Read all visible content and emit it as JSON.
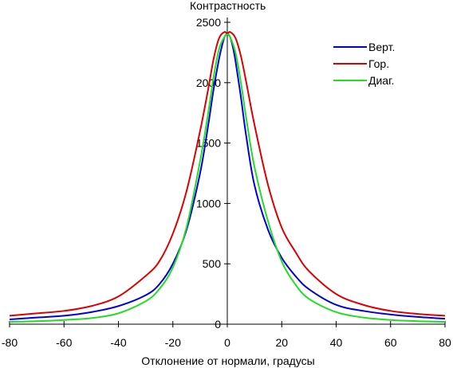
{
  "chart_data": {
    "type": "line",
    "ylabel": "Контрастность",
    "xlabel": "Отклонение от нормали, градусы",
    "xlim": [
      -80,
      80
    ],
    "ylim": [
      0,
      2500
    ],
    "xticks": [
      -80,
      -60,
      -40,
      -20,
      0,
      20,
      40,
      60,
      80
    ],
    "yticks": [
      0,
      500,
      1000,
      1500,
      2000,
      2500
    ],
    "grid": false,
    "legend_position": "top-right",
    "series": [
      {
        "name": "Верт.",
        "color": "#0000dd",
        "x": [
          -80,
          -70,
          -60,
          -50,
          -40,
          -30,
          -25,
          -20,
          -15,
          -10,
          -7,
          -5,
          -3,
          -2,
          -1,
          0,
          1,
          2,
          3,
          5,
          7,
          10,
          15,
          20,
          25,
          30,
          40,
          50,
          60,
          70,
          80
        ],
        "y": [
          40,
          55,
          70,
          100,
          150,
          240,
          330,
          500,
          780,
          1250,
          1650,
          1950,
          2200,
          2300,
          2380,
          2400,
          2380,
          2300,
          2180,
          1880,
          1550,
          1150,
          780,
          550,
          400,
          290,
          160,
          110,
          80,
          60,
          45
        ]
      },
      {
        "name": "Гор.",
        "color": "#dd0000",
        "x": [
          -80,
          -70,
          -60,
          -50,
          -40,
          -30,
          -25,
          -20,
          -15,
          -10,
          -7,
          -5,
          -3,
          -1,
          0,
          1,
          3,
          5,
          7,
          10,
          15,
          20,
          25,
          30,
          40,
          50,
          60,
          70,
          80
        ],
        "y": [
          70,
          90,
          110,
          150,
          230,
          400,
          520,
          750,
          1100,
          1600,
          1950,
          2200,
          2370,
          2420,
          2400,
          2420,
          2370,
          2220,
          2000,
          1650,
          1150,
          800,
          600,
          440,
          250,
          160,
          110,
          85,
          70
        ]
      },
      {
        "name": "Диаг.",
        "color": "#22dd22",
        "x": [
          -80,
          -70,
          -60,
          -50,
          -40,
          -30,
          -25,
          -20,
          -15,
          -10,
          -7,
          -5,
          -3,
          -1,
          0,
          1,
          3,
          5,
          7,
          10,
          15,
          20,
          25,
          30,
          40,
          50,
          60,
          70,
          80
        ],
        "y": [
          20,
          25,
          35,
          50,
          90,
          190,
          290,
          470,
          800,
          1350,
          1750,
          2050,
          2280,
          2380,
          2400,
          2380,
          2250,
          2000,
          1700,
          1300,
          850,
          520,
          330,
          210,
          100,
          55,
          35,
          25,
          20
        ]
      }
    ]
  }
}
